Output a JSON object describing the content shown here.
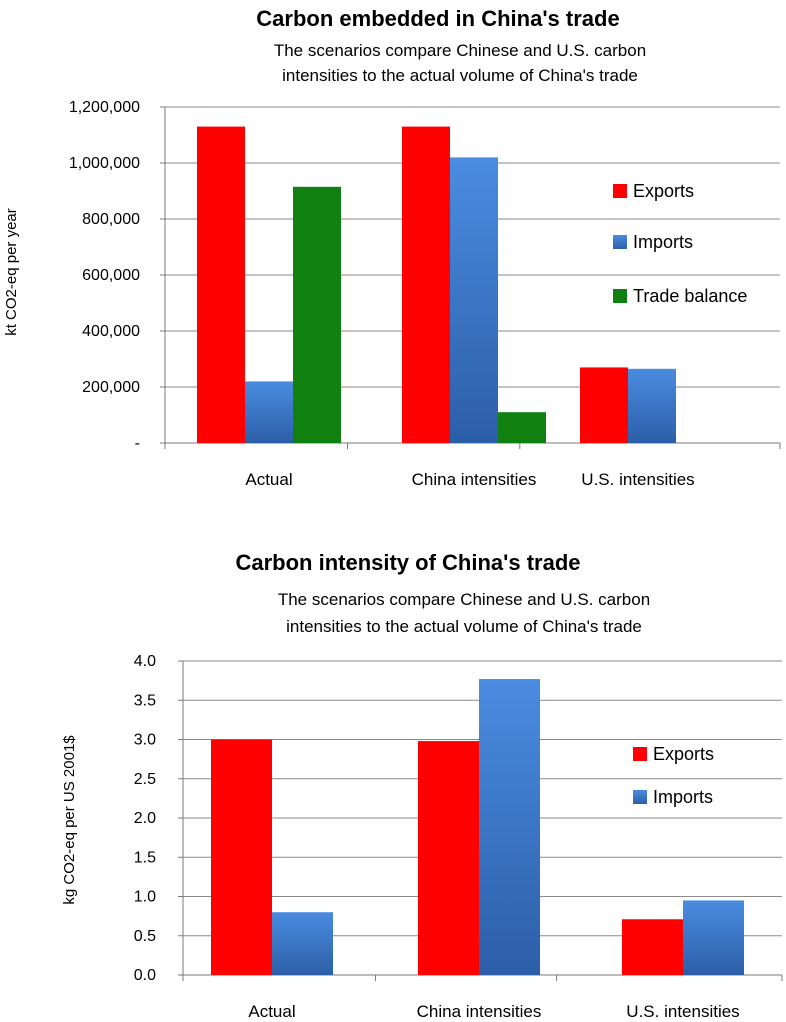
{
  "colors": {
    "exports": "#ff0000",
    "imports": "#3c78d2",
    "trade_balance": "#108010"
  },
  "chart_data": [
    {
      "type": "bar",
      "title": "Carbon embedded in China's trade",
      "subtitle_lines": [
        "The scenarios compare Chinese and U.S. carbon",
        "intensities to  the actual  volume of  China's trade"
      ],
      "ylabel": "kt CO2-eq per year",
      "xlabel": "",
      "ylim": [
        0,
        1200000
      ],
      "yticks": [
        0,
        200000,
        400000,
        600000,
        800000,
        1000000,
        1200000
      ],
      "ytick_labels": [
        "-",
        "200,000",
        "400,000",
        "600,000",
        "800,000",
        "1,000,000",
        "1,200,000"
      ],
      "grid": true,
      "legend_position": "right",
      "categories": [
        "Actual",
        "China intensities",
        "U.S. intensities"
      ],
      "series": [
        {
          "name": "Exports",
          "color_key": "exports",
          "values": [
            1130000,
            1130000,
            270000
          ]
        },
        {
          "name": "Imports",
          "color_key": "imports",
          "values": [
            220000,
            1020000,
            265000
          ]
        },
        {
          "name": "Trade balance",
          "color_key": "trade_balance",
          "values": [
            915000,
            110000,
            null
          ]
        }
      ]
    },
    {
      "type": "bar",
      "title": "Carbon intensity of China's trade",
      "subtitle_lines": [
        "The scenarios compare Chinese and U.S. carbon",
        "intensities to  the actual  volume of  China's trade"
      ],
      "ylabel": "kg CO2-eq per US 2001$",
      "xlabel": "",
      "ylim": [
        0,
        4.0
      ],
      "yticks": [
        0,
        0.5,
        1,
        1.5,
        2,
        2.5,
        3,
        3.5,
        4
      ],
      "ytick_labels": [
        "0.0",
        "0.5",
        "1.0",
        "1.5",
        "2.0",
        "2.5",
        "3.0",
        "3.5",
        "4.0"
      ],
      "grid": true,
      "legend_position": "right",
      "categories": [
        "Actual",
        "China intensities",
        "U.S. intensities"
      ],
      "series": [
        {
          "name": "Exports",
          "color_key": "exports",
          "values": [
            3.0,
            2.98,
            0.71
          ]
        },
        {
          "name": "Imports",
          "color_key": "imports",
          "values": [
            0.8,
            3.77,
            0.95
          ]
        }
      ]
    }
  ]
}
